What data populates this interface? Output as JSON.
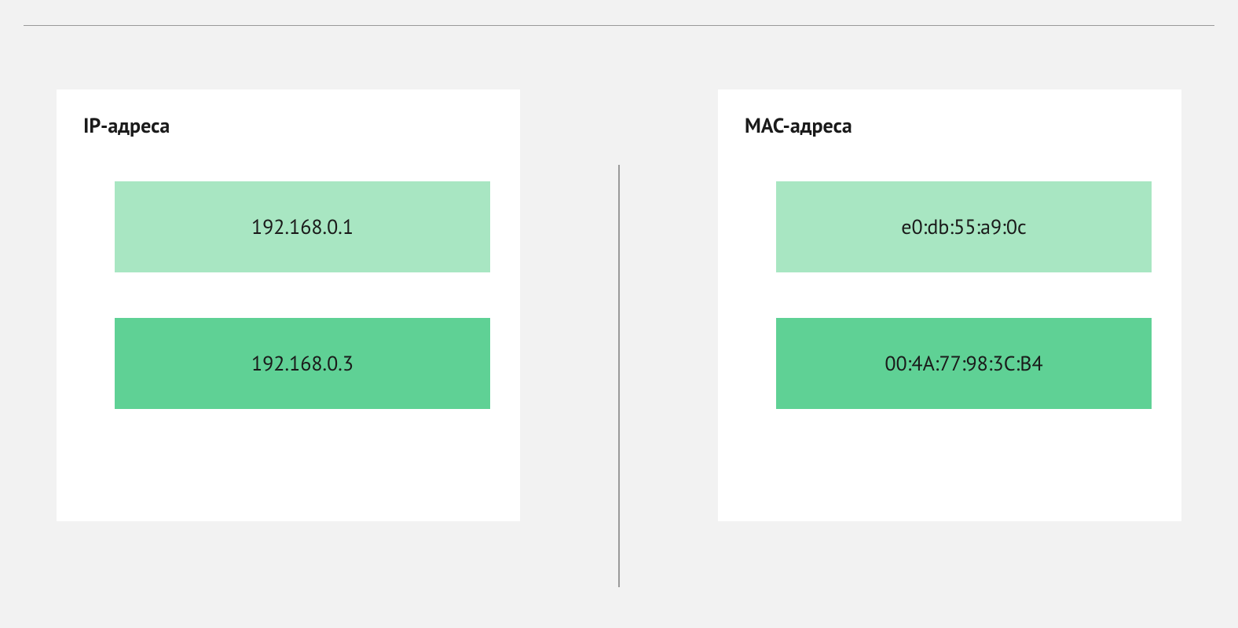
{
  "layout": {
    "background_color": "#f2f2f2",
    "panel_background": "#ffffff",
    "divider_color": "#9a9a9a",
    "text_color": "#1a1a1a",
    "title_fontsize": 26,
    "value_fontsize": 26,
    "block_height": 116,
    "block_gap": 58
  },
  "left_panel": {
    "title": "IP-адреса",
    "items": [
      {
        "value": "192.168.0.1",
        "background": "#a8e6c2"
      },
      {
        "value": "192.168.0.3",
        "background": "#5fd195"
      }
    ]
  },
  "right_panel": {
    "title": "MAC-адреса",
    "items": [
      {
        "value": "e0:db:55:a9:0c",
        "background": "#a8e6c2"
      },
      {
        "value": "00:4A:77:98:3C:B4",
        "background": "#5fd195"
      }
    ]
  }
}
